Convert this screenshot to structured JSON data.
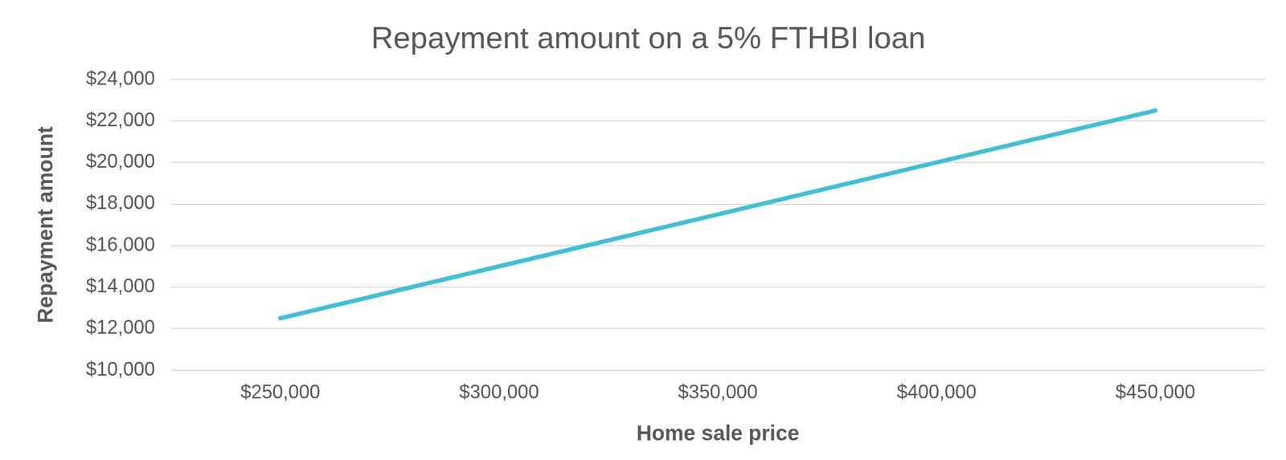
{
  "chart_data": {
    "type": "line",
    "title": "Repayment amount on a 5% FTHBI loan",
    "x_label": "Home sale price",
    "y_label": "Repayment amount",
    "categories": [
      "$250,000",
      "$300,000",
      "$350,000",
      "$400,000",
      "$450,000"
    ],
    "values": [
      12500,
      15000,
      17500,
      20000,
      22500
    ],
    "color": "#3fc0d6",
    "marker": "none",
    "ylim": [
      10000,
      24000
    ],
    "yticks": [
      {
        "value": 10000,
        "label": "$10,000"
      },
      {
        "value": 12000,
        "label": "$12,000"
      },
      {
        "value": 14000,
        "label": "$14,000"
      },
      {
        "value": 16000,
        "label": "$16,000"
      },
      {
        "value": 18000,
        "label": "$18,000"
      },
      {
        "value": 20000,
        "label": "$20,000"
      },
      {
        "value": 22000,
        "label": "$22,000"
      },
      {
        "value": 24000,
        "label": "$24,000"
      }
    ],
    "grid": true
  }
}
